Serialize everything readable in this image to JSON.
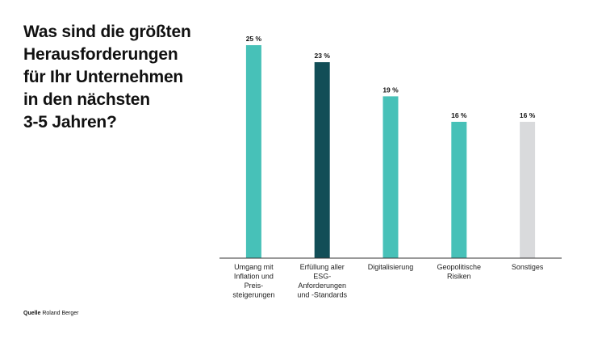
{
  "title_lines": [
    "Was sind die größten",
    "Herausforderungen",
    "für Ihr Unternehmen",
    "in den nächsten",
    "3-5 Jahren?"
  ],
  "source": {
    "label": "Quelle",
    "name": "Roland Berger"
  },
  "colors": {
    "teal": "#47C1B8",
    "dark_teal": "#124E57",
    "grey": "#D9DADC",
    "axis": "#333333"
  },
  "chart_data": {
    "type": "bar",
    "categories": [
      [
        "Umgang mit",
        "Inflation und",
        "Preis-",
        "steigerungen"
      ],
      [
        "Erfüllung aller",
        "ESG-",
        "Anforderungen",
        "und -Standards"
      ],
      [
        "Digitalisierung"
      ],
      [
        "Geopolitische",
        "Risiken"
      ],
      [
        "Sonstiges"
      ]
    ],
    "values": [
      25,
      23,
      19,
      16,
      16
    ],
    "value_labels": [
      "25 %",
      "23 %",
      "19 %",
      "16 %",
      "16 %"
    ],
    "bar_colors": [
      "#47C1B8",
      "#124E57",
      "#47C1B8",
      "#47C1B8",
      "#D9DADC"
    ],
    "ylim": [
      0,
      25
    ],
    "grid": false,
    "unit": "%"
  }
}
